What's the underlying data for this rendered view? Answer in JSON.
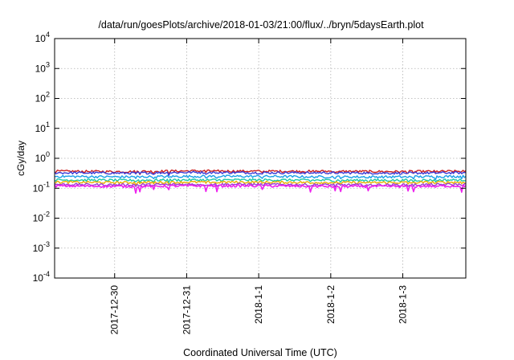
{
  "chart_data": {
    "type": "line",
    "title": "/data/run/goesPlots/archive/2018-01-03/21:00/flux/../bryn/5daysEarth.plot",
    "xlabel": "Coordinated Universal Time (UTC)",
    "ylabel": "cGy/day",
    "yscale": "log",
    "ylim": [
      0.0001,
      10000
    ],
    "y_ticks": [
      {
        "base": "10",
        "exp": "-4",
        "value": 0.0001
      },
      {
        "base": "10",
        "exp": "-3",
        "value": 0.001
      },
      {
        "base": "10",
        "exp": "-2",
        "value": 0.01
      },
      {
        "base": "10",
        "exp": "-1",
        "value": 0.1
      },
      {
        "base": "10",
        "exp": "0",
        "value": 1
      },
      {
        "base": "10",
        "exp": "1",
        "value": 10
      },
      {
        "base": "10",
        "exp": "2",
        "value": 100
      },
      {
        "base": "10",
        "exp": "3",
        "value": 1000
      },
      {
        "base": "10",
        "exp": "4",
        "value": 10000
      }
    ],
    "xlim": [
      "2017-12-29T04:00",
      "2018-01-03T21:00"
    ],
    "x_ticks": [
      {
        "label": "2017-12-30",
        "value": "2017-12-30T00:00"
      },
      {
        "label": "2017-12-31",
        "value": "2017-12-31T00:00"
      },
      {
        "label": "2018-1-1",
        "value": "2018-01-01T00:00"
      },
      {
        "label": "2018-1-2",
        "value": "2018-01-02T00:00"
      },
      {
        "label": "2018-1-3",
        "value": "2018-01-03T00:00"
      }
    ],
    "grid": true,
    "legend": "none",
    "series": [
      {
        "color": "#cc1e1e",
        "values": [
          0.37,
          0.36,
          0.38,
          0.37,
          0.37,
          0.36,
          0.37
        ]
      },
      {
        "color": "#3b3bd6",
        "values": [
          0.33,
          0.32,
          0.34,
          0.33,
          0.33,
          0.32,
          0.33
        ]
      },
      {
        "color": "#1aa0e8",
        "values": [
          0.25,
          0.24,
          0.25,
          0.25,
          0.24,
          0.24,
          0.25
        ]
      },
      {
        "color": "#1ec8a8",
        "values": [
          0.19,
          0.185,
          0.19,
          0.19,
          0.185,
          0.185,
          0.19
        ]
      },
      {
        "color": "#e8b000",
        "values": [
          0.16,
          0.155,
          0.16,
          0.16,
          0.155,
          0.155,
          0.16
        ]
      },
      {
        "color": "#9a3fd0",
        "values": [
          0.135,
          0.13,
          0.135,
          0.135,
          0.13,
          0.13,
          0.135
        ]
      },
      {
        "color": "#ee22ee",
        "values": [
          0.12,
          0.115,
          0.12,
          0.12,
          0.115,
          0.115,
          0.12
        ]
      }
    ]
  }
}
